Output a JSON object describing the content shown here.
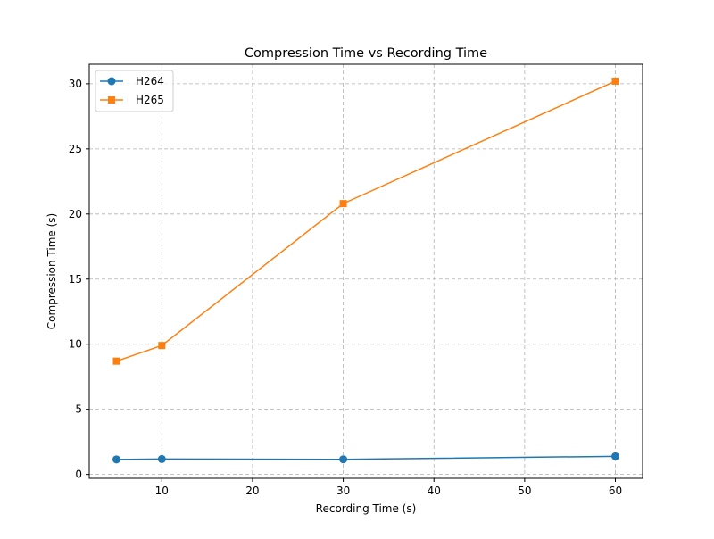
{
  "chart_data": {
    "type": "line",
    "title": "Compression Time vs Recording Time",
    "xlabel": "Recording Time (s)",
    "ylabel": "Compression Time (s)",
    "xlim": [
      2,
      63
    ],
    "ylim": [
      -0.3,
      31.5
    ],
    "xticks": [
      10,
      20,
      30,
      40,
      50,
      60
    ],
    "yticks": [
      0,
      5,
      10,
      15,
      20,
      25,
      30
    ],
    "grid": true,
    "legend_position": "top-left",
    "x": [
      5,
      10,
      30,
      60
    ],
    "series": [
      {
        "name": "H264",
        "color": "#1f77b4",
        "marker": "circle",
        "values": [
          1.15,
          1.18,
          1.16,
          1.39
        ]
      },
      {
        "name": "H265",
        "color": "#ff7f0e",
        "marker": "square",
        "values": [
          8.7,
          9.9,
          20.8,
          30.2
        ]
      }
    ]
  }
}
